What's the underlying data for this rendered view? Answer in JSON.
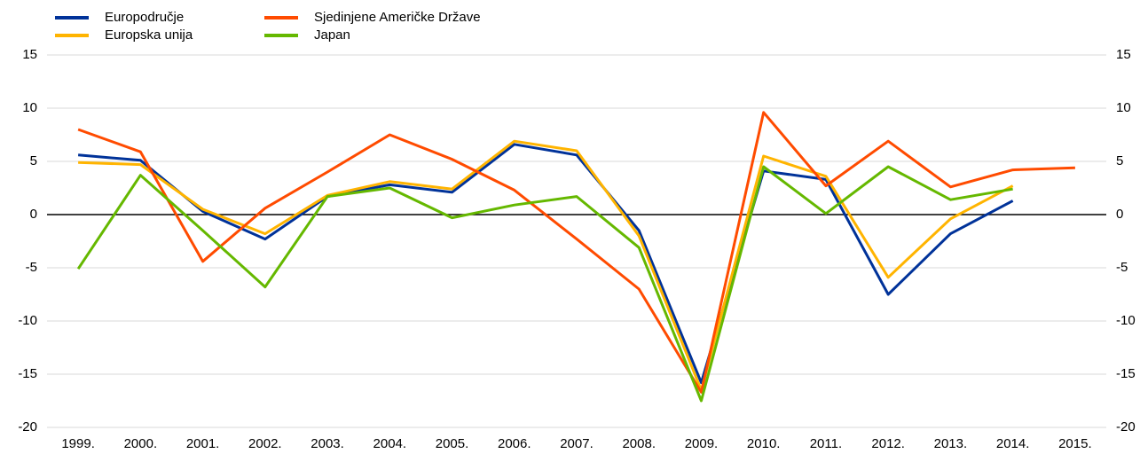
{
  "chart_data": {
    "type": "line",
    "categories": [
      "1999.",
      "2000.",
      "2001.",
      "2002.",
      "2003.",
      "2004.",
      "2005.",
      "2006.",
      "2007.",
      "2008.",
      "2009.",
      "2010.",
      "2011.",
      "2012.",
      "2013.",
      "2014.",
      "2015."
    ],
    "series": [
      {
        "name": "Europodručje",
        "color": "#003299",
        "values": [
          5.6,
          5.1,
          0.3,
          -2.3,
          1.7,
          2.8,
          2.1,
          6.6,
          5.6,
          -1.5,
          -15.8,
          4.1,
          3.3,
          -7.5,
          -1.8,
          1.3,
          null
        ]
      },
      {
        "name": "Europska unija",
        "color": "#ffb400",
        "values": [
          4.9,
          4.7,
          0.5,
          -1.8,
          1.8,
          3.1,
          2.4,
          6.9,
          6.0,
          -2.0,
          -16.5,
          5.5,
          3.6,
          -5.9,
          -0.4,
          2.7,
          null
        ]
      },
      {
        "name": "Sjedinjene Američke Države",
        "color": "#ff4b00",
        "values": [
          8.0,
          5.9,
          -4.4,
          0.6,
          4.0,
          7.5,
          5.2,
          2.3,
          -2.3,
          -7.0,
          -16.7,
          9.6,
          2.7,
          6.9,
          2.6,
          4.2,
          4.4
        ]
      },
      {
        "name": "Japan",
        "color": "#65b800",
        "values": [
          -5.1,
          3.7,
          -1.5,
          -6.8,
          1.7,
          2.5,
          -0.3,
          0.9,
          1.7,
          -3.1,
          -17.5,
          4.5,
          0.1,
          4.5,
          1.4,
          2.4,
          null
        ]
      }
    ],
    "ylim": [
      -20,
      15
    ],
    "yticks": [
      -20,
      -15,
      -10,
      -5,
      0,
      5,
      10,
      15
    ],
    "y2lim": [
      -20,
      15
    ],
    "y2ticks": [
      -20,
      -15,
      -10,
      -5,
      0,
      5,
      10,
      15
    ],
    "grid": true
  }
}
